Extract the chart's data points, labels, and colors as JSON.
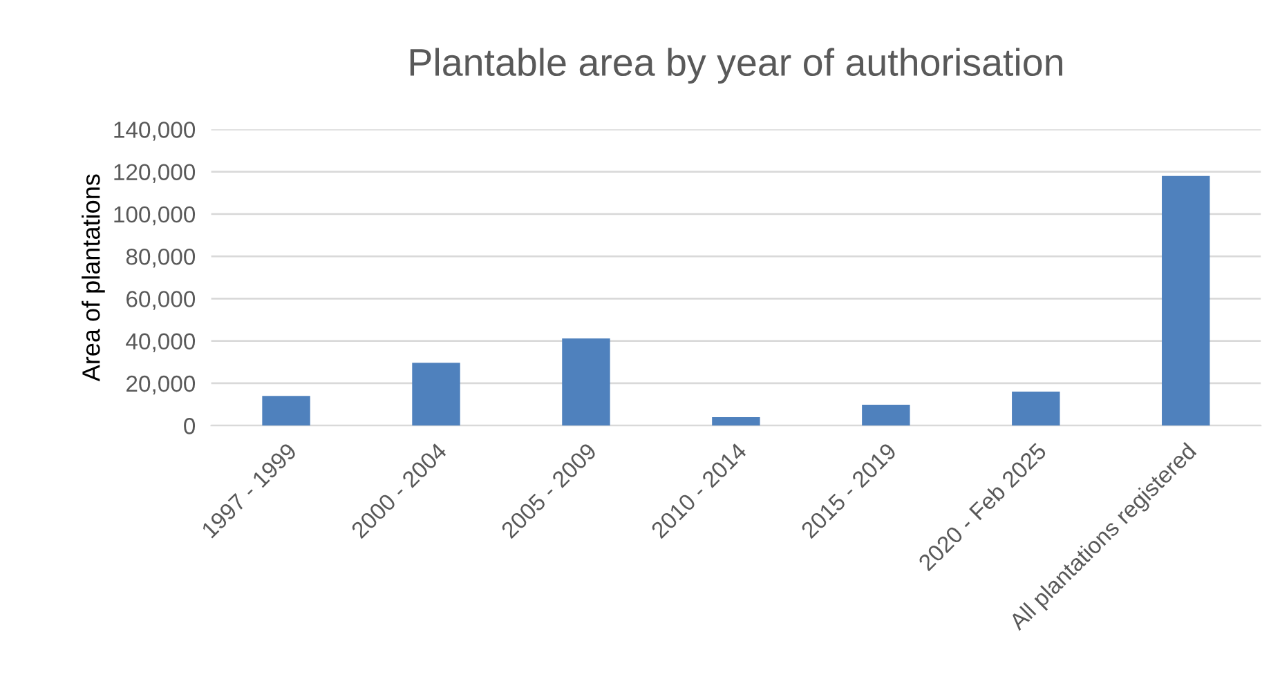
{
  "chart_data": {
    "type": "bar",
    "title": "Plantable area by year of authorisation",
    "ylabel": "Area of plantations",
    "categories": [
      "1997 - 1999",
      "2000 - 2004",
      "2005 - 2009",
      "2010 - 2014",
      "2015 - 2019",
      "2020 - Feb 2025",
      "All plantations registered"
    ],
    "values": [
      14000,
      29700,
      41200,
      4000,
      9900,
      16100,
      118000
    ],
    "color": "#4f81bd",
    "ylim": [
      0,
      140000
    ],
    "yticks": [
      {
        "value": 0,
        "label": "0"
      },
      {
        "value": 20000,
        "label": "20,000"
      },
      {
        "value": 40000,
        "label": "40,000"
      },
      {
        "value": 60000,
        "label": "60,000"
      },
      {
        "value": 80000,
        "label": "80,000"
      },
      {
        "value": 100000,
        "label": "100,000"
      },
      {
        "value": 120000,
        "label": "120,000"
      },
      {
        "value": 140000,
        "label": "140,000"
      }
    ],
    "grid": "y",
    "legend": false
  }
}
